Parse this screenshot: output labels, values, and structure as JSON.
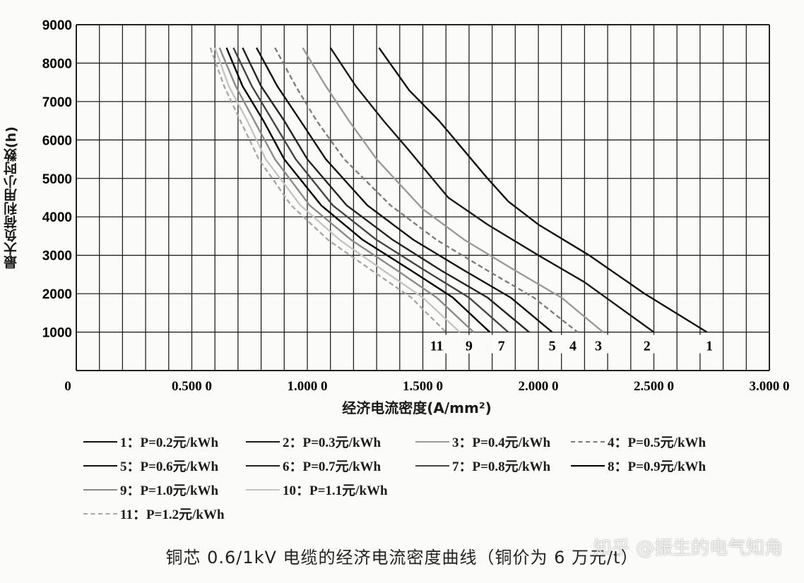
{
  "chart_data": {
    "type": "line",
    "title": "",
    "xlabel": "经济电流密度(A/mm²)",
    "ylabel": "最大负荷利用小时数(h)",
    "xlim": [
      0,
      3.0
    ],
    "ylim": [
      0,
      9000
    ],
    "x_tick_labels": [
      "0",
      "0.500 0",
      "1.000 0",
      "1.500 0",
      "2.000 0",
      "2.500 0",
      "3.000 0"
    ],
    "x_tick_values": [
      0,
      0.5,
      1.0,
      1.5,
      2.0,
      2.5,
      3.0
    ],
    "y_tick_labels": [
      "1000",
      "2000",
      "3000",
      "4000",
      "5000",
      "6000",
      "7000",
      "8000",
      "9000"
    ],
    "y_tick_values": [
      1000,
      2000,
      3000,
      4000,
      5000,
      6000,
      7000,
      8000,
      9000
    ],
    "grid": true,
    "legend_position": "bottom",
    "series": [
      {
        "id": "1",
        "name": "1：P=0.2元/kWh",
        "color": "#111111",
        "style": "solid",
        "points": [
          [
            1.31,
            8400
          ],
          [
            1.44,
            7300
          ],
          [
            1.57,
            6500
          ],
          [
            1.64,
            6000
          ],
          [
            1.78,
            5000
          ],
          [
            1.87,
            4400
          ],
          [
            2.0,
            3800
          ],
          [
            2.22,
            3000
          ],
          [
            2.46,
            2000
          ],
          [
            2.73,
            1000
          ]
        ]
      },
      {
        "id": "2",
        "name": "2：P=0.3元/kWh",
        "color": "#1a1a1a",
        "style": "solid",
        "points": [
          [
            1.1,
            8400
          ],
          [
            1.21,
            7400
          ],
          [
            1.33,
            6500
          ],
          [
            1.43,
            5800
          ],
          [
            1.61,
            4500
          ],
          [
            1.78,
            3800
          ],
          [
            2.0,
            3000
          ],
          [
            2.2,
            2300
          ],
          [
            2.5,
            1000
          ]
        ]
      },
      {
        "id": "3",
        "name": "3：P=0.4元/kWh",
        "color": "#9a9a9a",
        "style": "solid",
        "points": [
          [
            0.98,
            8400
          ],
          [
            1.08,
            7400
          ],
          [
            1.18,
            6500
          ],
          [
            1.3,
            5500
          ],
          [
            1.5,
            4200
          ],
          [
            1.68,
            3400
          ],
          [
            1.9,
            2600
          ],
          [
            2.1,
            1900
          ],
          [
            2.28,
            1000
          ]
        ]
      },
      {
        "id": "4",
        "name": "4：P=0.5元/kWh",
        "color": "#7d7d7d",
        "style": "dashed",
        "points": [
          [
            0.86,
            8400
          ],
          [
            0.95,
            7400
          ],
          [
            1.04,
            6500
          ],
          [
            1.16,
            5500
          ],
          [
            1.36,
            4300
          ],
          [
            1.56,
            3400
          ],
          [
            1.78,
            2600
          ],
          [
            1.98,
            1900
          ],
          [
            2.17,
            1000
          ]
        ]
      },
      {
        "id": "5",
        "name": "5：P=0.6元/kWh",
        "color": "#111111",
        "style": "solid",
        "points": [
          [
            0.78,
            8400
          ],
          [
            0.87,
            7400
          ],
          [
            0.97,
            6500
          ],
          [
            1.08,
            5500
          ],
          [
            1.26,
            4300
          ],
          [
            1.46,
            3400
          ],
          [
            1.68,
            2600
          ],
          [
            1.88,
            1900
          ],
          [
            2.06,
            1000
          ]
        ]
      },
      {
        "id": "6",
        "name": "6：P=0.7元/kWh",
        "color": "#222222",
        "style": "solid",
        "points": [
          [
            0.72,
            8400
          ],
          [
            0.8,
            7400
          ],
          [
            0.9,
            6500
          ],
          [
            1.0,
            5500
          ],
          [
            1.17,
            4300
          ],
          [
            1.37,
            3400
          ],
          [
            1.58,
            2600
          ],
          [
            1.78,
            1900
          ],
          [
            1.96,
            1000
          ]
        ]
      },
      {
        "id": "7",
        "name": "7：P=0.8元/kWh",
        "color": "#444444",
        "style": "solid",
        "points": [
          [
            0.68,
            8400
          ],
          [
            0.76,
            7400
          ],
          [
            0.85,
            6500
          ],
          [
            0.95,
            5500
          ],
          [
            1.11,
            4300
          ],
          [
            1.3,
            3400
          ],
          [
            1.51,
            2600
          ],
          [
            1.7,
            1900
          ],
          [
            1.87,
            1000
          ]
        ]
      },
      {
        "id": "8",
        "name": "8：P=0.9元/kWh",
        "color": "#000000",
        "style": "solid",
        "points": [
          [
            0.65,
            8400
          ],
          [
            0.72,
            7400
          ],
          [
            0.81,
            6500
          ],
          [
            0.9,
            5500
          ],
          [
            1.06,
            4300
          ],
          [
            1.24,
            3400
          ],
          [
            1.45,
            2600
          ],
          [
            1.63,
            1900
          ],
          [
            1.79,
            1000
          ]
        ]
      },
      {
        "id": "9",
        "name": "9：P=1.0元/kWh",
        "color": "#8a8a8a",
        "style": "solid",
        "points": [
          [
            0.62,
            8400
          ],
          [
            0.69,
            7400
          ],
          [
            0.77,
            6500
          ],
          [
            0.86,
            5500
          ],
          [
            1.01,
            4300
          ],
          [
            1.19,
            3400
          ],
          [
            1.39,
            2600
          ],
          [
            1.56,
            1900
          ],
          [
            1.72,
            1000
          ]
        ]
      },
      {
        "id": "10",
        "name": "10：P=1.1元/kWh",
        "color": "#c4c4c4",
        "style": "solid",
        "points": [
          [
            0.6,
            8400
          ],
          [
            0.66,
            7400
          ],
          [
            0.74,
            6500
          ],
          [
            0.82,
            5500
          ],
          [
            0.97,
            4300
          ],
          [
            1.14,
            3400
          ],
          [
            1.33,
            2600
          ],
          [
            1.5,
            1900
          ],
          [
            1.66,
            1000
          ]
        ]
      },
      {
        "id": "11",
        "name": "11：P=1.2元/kWh",
        "color": "#a8a8a8",
        "style": "dashed",
        "points": [
          [
            0.58,
            8400
          ],
          [
            0.64,
            7400
          ],
          [
            0.71,
            6500
          ],
          [
            0.79,
            5500
          ],
          [
            0.93,
            4300
          ],
          [
            1.09,
            3400
          ],
          [
            1.28,
            2600
          ],
          [
            1.45,
            1900
          ],
          [
            1.6,
            1000
          ]
        ]
      }
    ],
    "curve_end_labels": [
      {
        "text": "11",
        "x": 1.56
      },
      {
        "text": "9",
        "x": 1.7
      },
      {
        "text": "7",
        "x": 1.84
      },
      {
        "text": "5",
        "x": 2.06
      },
      {
        "text": "4",
        "x": 2.15
      },
      {
        "text": "3",
        "x": 2.26
      },
      {
        "text": "2",
        "x": 2.47
      },
      {
        "text": "1",
        "x": 2.74
      }
    ]
  },
  "legend": {
    "rows": [
      [
        {
          "label": "1：P=0.2元/kWh",
          "color": "#111111",
          "style": "solid"
        },
        {
          "label": "2：P=0.3元/kWh",
          "color": "#1a1a1a",
          "style": "solid"
        },
        {
          "label": "3：P=0.4元/kWh",
          "color": "#9a9a9a",
          "style": "solid"
        },
        {
          "label": "4：P=0.5元/kWh",
          "color": "#7d7d7d",
          "style": "dashed"
        }
      ],
      [
        {
          "label": "5：P=0.6元/kWh",
          "color": "#111111",
          "style": "solid"
        },
        {
          "label": "6：P=0.7元/kWh",
          "color": "#222222",
          "style": "solid"
        },
        {
          "label": "7：P=0.8元/kWh",
          "color": "#444444",
          "style": "solid"
        },
        {
          "label": "8：P=0.9元/kWh",
          "color": "#000000",
          "style": "solid"
        }
      ],
      [
        {
          "label": "9：P=1.0元/kWh",
          "color": "#8a8a8a",
          "style": "solid"
        },
        {
          "label": "10：P=1.1元/kWh",
          "color": "#c4c4c4",
          "style": "solid"
        }
      ],
      [
        {
          "label": "11：P=1.2元/kWh",
          "color": "#a8a8a8",
          "style": "dashed"
        }
      ]
    ]
  },
  "caption": "铜芯 0.6/1kV 电缆的经济电流密度曲线（铜价为 6 万元/t）",
  "watermark": "知乎 @振生的电气知角"
}
